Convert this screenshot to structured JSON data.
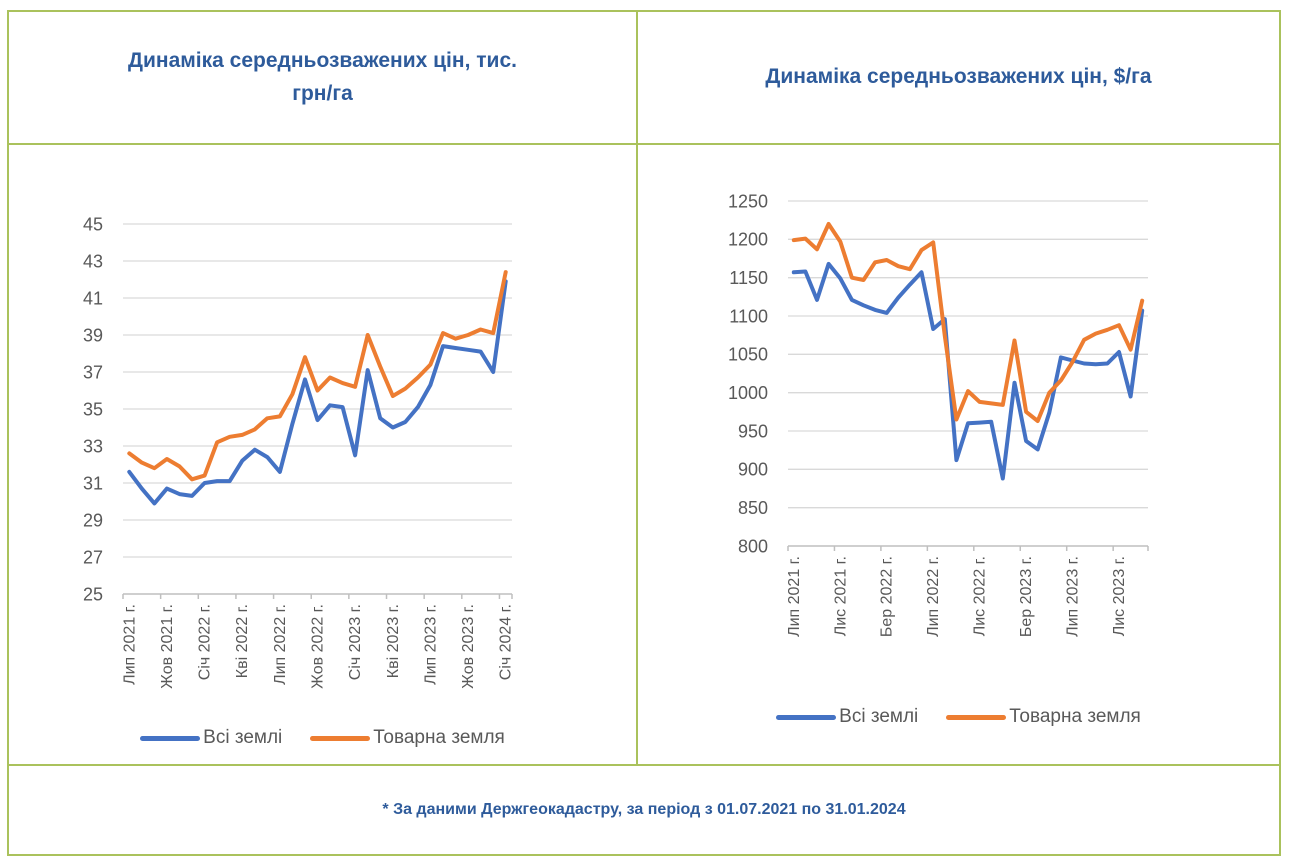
{
  "footnote": "* За даними Держгеокадастру, за період з 01.07.2021 по 31.01.2024",
  "colors": {
    "series_all_lands": "#4472C4",
    "series_commercial_land": "#ED7D31",
    "table_border": "#aac25c",
    "title_text": "#2e5b9b",
    "axis_text": "#595959",
    "gridline": "#d9d9d9",
    "axis_line": "#bfbfbf"
  },
  "chart_data": [
    {
      "type": "line",
      "title": "Динаміка середньозважених цін, тис. грн/га",
      "grid": true,
      "legend_position": "bottom",
      "ylim": [
        25,
        45
      ],
      "ystep": 2,
      "y_ticks": [
        25,
        27,
        29,
        31,
        33,
        35,
        37,
        39,
        41,
        43,
        45
      ],
      "n_points": 31,
      "x_tick_indices": [
        0,
        3,
        6,
        9,
        12,
        15,
        18,
        21,
        24,
        27,
        30
      ],
      "x_tick_labels": [
        "Лип 2021 г.",
        "Жов 2021 г.",
        "Січ 2022 г.",
        "Кві 2022 г.",
        "Лип 2022 г.",
        "Жов 2022 г.",
        "Січ 2023 г.",
        "Кві 2023 г.",
        "Лип 2023 г.",
        "Жов 2023 г.",
        "Січ 2024 г."
      ],
      "series": [
        {
          "name": "Всі землі",
          "color": "#4472C4",
          "values": [
            31.6,
            30.7,
            29.9,
            30.7,
            30.4,
            30.3,
            31.0,
            31.1,
            31.1,
            32.2,
            32.8,
            32.4,
            31.6,
            34.2,
            36.6,
            34.4,
            35.2,
            35.1,
            32.5,
            37.1,
            34.5,
            34.0,
            34.3,
            35.1,
            36.3,
            38.4,
            38.3,
            38.2,
            38.1,
            37.0,
            41.9
          ]
        },
        {
          "name": "Товарна земля",
          "color": "#ED7D31",
          "values": [
            32.6,
            32.1,
            31.8,
            32.3,
            31.9,
            31.2,
            31.4,
            33.2,
            33.5,
            33.6,
            33.9,
            34.5,
            34.6,
            35.8,
            37.8,
            36.0,
            36.7,
            36.4,
            36.2,
            39.0,
            37.3,
            35.7,
            36.1,
            36.7,
            37.4,
            39.1,
            38.8,
            39.0,
            39.3,
            39.1,
            42.4
          ]
        }
      ]
    },
    {
      "type": "line",
      "title": "Динаміка середньозважених цін, $/га",
      "grid": true,
      "legend_position": "bottom",
      "ylim": [
        800,
        1250
      ],
      "ystep": 50,
      "y_ticks": [
        800,
        850,
        900,
        950,
        1000,
        1050,
        1100,
        1150,
        1200,
        1250
      ],
      "n_points": 31,
      "x_tick_indices": [
        0,
        4,
        8,
        12,
        16,
        20,
        24,
        28
      ],
      "x_tick_labels": [
        "Лип 2021 г.",
        "Лис 2021 г.",
        "Бер 2022 г.",
        "Лип 2022 г.",
        "Лис 2022 г.",
        "Бер 2023 г.",
        "Лип 2023 г.",
        "Лис 2023 г."
      ],
      "series": [
        {
          "name": "Всі землі",
          "color": "#4472C4",
          "values": [
            1157,
            1158,
            1121,
            1168,
            1149,
            1121,
            1114,
            1108,
            1104,
            1124,
            1141,
            1157,
            1083,
            1096,
            912,
            960,
            961,
            962,
            888,
            1013,
            937,
            926,
            974,
            1046,
            1042,
            1038,
            1037,
            1038,
            1053,
            995,
            1107
          ]
        },
        {
          "name": "Товарна земля",
          "color": "#ED7D31",
          "values": [
            1199,
            1201,
            1187,
            1220,
            1197,
            1150,
            1147,
            1170,
            1173,
            1165,
            1161,
            1186,
            1196,
            1074,
            965,
            1002,
            988,
            986,
            984,
            1068,
            975,
            963,
            1000,
            1016,
            1040,
            1069,
            1077,
            1082,
            1088,
            1056,
            1120
          ]
        }
      ]
    }
  ]
}
